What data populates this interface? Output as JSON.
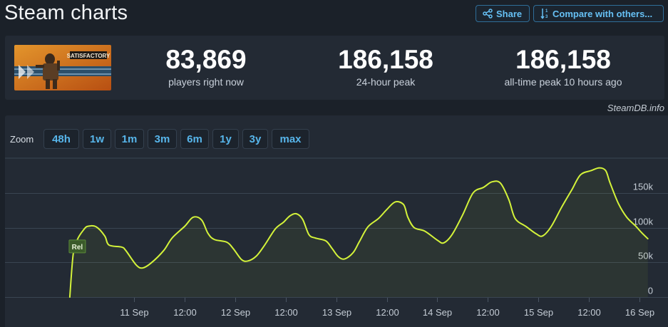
{
  "header": {
    "title": "Steam charts",
    "share_label": "Share",
    "compare_label": "Compare with others..."
  },
  "stats": {
    "players_now": {
      "value": "83,869",
      "label": "players right now"
    },
    "peak_24h": {
      "value": "186,158",
      "label": "24-hour peak"
    },
    "all_time_peak": {
      "value": "186,158",
      "label": "all-time peak 10 hours ago"
    }
  },
  "game": {
    "name": "SATISFACTORY"
  },
  "credit": "SteamDB.info",
  "zoom": {
    "label": "Zoom",
    "options": [
      "48h",
      "1w",
      "1m",
      "3m",
      "6m",
      "1y",
      "3y",
      "max"
    ]
  },
  "colors": {
    "line": "#d4f33a",
    "link": "#66c0f4",
    "marker_bg": "#3a5a2a"
  },
  "chart_data": {
    "type": "line",
    "x_unit": "hours since 10 Sep 00:00",
    "xlim": [
      -6.7,
      150.8
    ],
    "ylim": [
      0,
      200000
    ],
    "y_ticks": [
      {
        "value": 0,
        "label": "0"
      },
      {
        "value": 50000,
        "label": "50k"
      },
      {
        "value": 100000,
        "label": "100k"
      },
      {
        "value": 150000,
        "label": "150k"
      }
    ],
    "x_ticks": [
      {
        "x": 24,
        "label": "11 Sep"
      },
      {
        "x": 36,
        "label": "12:00"
      },
      {
        "x": 48,
        "label": "12 Sep"
      },
      {
        "x": 60,
        "label": "12:00"
      },
      {
        "x": 72,
        "label": "13 Sep"
      },
      {
        "x": 84,
        "label": "12:00"
      },
      {
        "x": 96,
        "label": "14 Sep"
      },
      {
        "x": 108,
        "label": "12:00"
      },
      {
        "x": 120,
        "label": "15 Sep"
      },
      {
        "x": 132,
        "label": "12:00"
      },
      {
        "x": 144,
        "label": "16 Sep"
      }
    ],
    "marker": {
      "label": "Rel",
      "x": 8.7,
      "y": 73000
    },
    "series": [
      {
        "values": [
          [
            8.7,
            0
          ],
          [
            9.5,
            62000
          ],
          [
            10.5,
            83000
          ],
          [
            12,
            97000
          ],
          [
            13,
            102000
          ],
          [
            15,
            101000
          ],
          [
            17,
            88000
          ],
          [
            18,
            75000
          ],
          [
            21,
            72000
          ],
          [
            22,
            67000
          ],
          [
            24.5,
            46000
          ],
          [
            26,
            42000
          ],
          [
            28,
            49000
          ],
          [
            31,
            67000
          ],
          [
            33,
            85000
          ],
          [
            36,
            102000
          ],
          [
            38,
            115000
          ],
          [
            40,
            111000
          ],
          [
            41.5,
            92000
          ],
          [
            43,
            83000
          ],
          [
            46,
            79000
          ],
          [
            47.5,
            70000
          ],
          [
            49.5,
            54000
          ],
          [
            51,
            52000
          ],
          [
            53,
            59000
          ],
          [
            55,
            75000
          ],
          [
            57.5,
            98000
          ],
          [
            59.5,
            108000
          ],
          [
            61,
            117000
          ],
          [
            62.5,
            120000
          ],
          [
            64,
            112000
          ],
          [
            65.5,
            90000
          ],
          [
            67,
            85000
          ],
          [
            69.5,
            81000
          ],
          [
            71,
            70000
          ],
          [
            72.5,
            58000
          ],
          [
            74,
            55000
          ],
          [
            76,
            64000
          ],
          [
            77.5,
            80000
          ],
          [
            79.5,
            101000
          ],
          [
            82,
            113000
          ],
          [
            84,
            126000
          ],
          [
            86,
            137000
          ],
          [
            88,
            133000
          ],
          [
            89,
            115000
          ],
          [
            90.5,
            100000
          ],
          [
            93,
            95000
          ],
          [
            96,
            82000
          ],
          [
            97.5,
            78000
          ],
          [
            99.5,
            90000
          ],
          [
            102,
            118000
          ],
          [
            104.5,
            150000
          ],
          [
            107,
            158000
          ],
          [
            109,
            166000
          ],
          [
            111,
            164000
          ],
          [
            113,
            140000
          ],
          [
            114.5,
            113000
          ],
          [
            117,
            102000
          ],
          [
            119.5,
            91000
          ],
          [
            121,
            88000
          ],
          [
            123,
            101000
          ],
          [
            125.5,
            129000
          ],
          [
            128,
            155000
          ],
          [
            130,
            176000
          ],
          [
            132.5,
            182000
          ],
          [
            134.5,
            186000
          ],
          [
            136,
            182000
          ],
          [
            137,
            165000
          ],
          [
            139,
            135000
          ],
          [
            141,
            115000
          ],
          [
            143,
            103000
          ],
          [
            144.5,
            93000
          ],
          [
            146,
            84000
          ]
        ]
      }
    ]
  }
}
